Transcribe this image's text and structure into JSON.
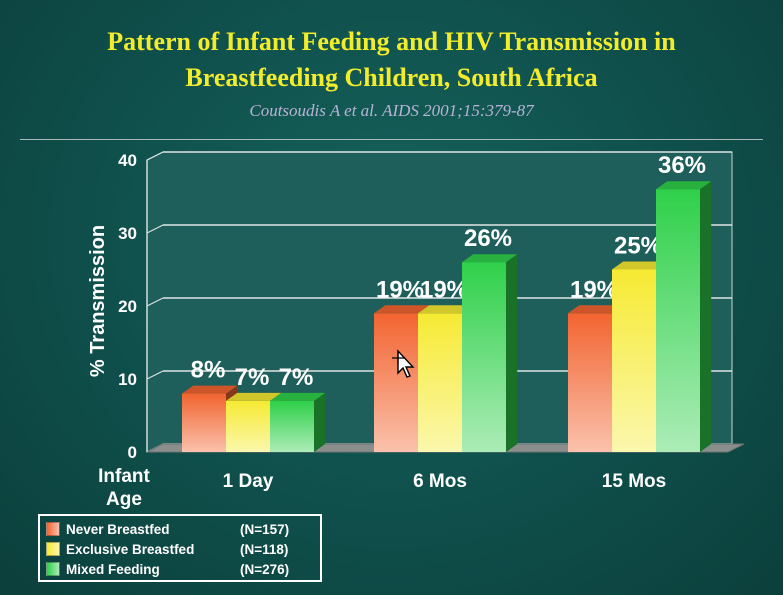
{
  "slide": {
    "title_line1": "Pattern of Infant Feeding and HIV Transmission in",
    "title_line2": "Breastfeeding Children, South Africa",
    "citation": "Coutsoudis A et al.  AIDS 2001;15:379-87"
  },
  "colors": {
    "background": "#0f4f4b",
    "title": "#f2ec2a",
    "citation": "#b9b3d8"
  },
  "chart_data": {
    "type": "bar",
    "title": "",
    "ylabel": "% Transmission",
    "xlabel": "Infant Age",
    "ylim": [
      0,
      40
    ],
    "yticks": [
      0,
      10,
      20,
      30,
      40
    ],
    "grid": true,
    "legend_position": "bottom-left",
    "categories": [
      "1 Day",
      "6 Mos",
      "15 Mos"
    ],
    "series": [
      {
        "name": "Never Breastfed",
        "n": "(N=157)",
        "values": [
          8,
          19,
          19
        ],
        "labels": [
          "8%",
          "19%",
          "19%"
        ],
        "color": "#f26430"
      },
      {
        "name": "Exclusive Breastfed",
        "n": "(N=118)",
        "values": [
          7,
          19,
          25
        ],
        "labels": [
          "7%",
          "19%",
          "25%"
        ],
        "color": "#f6ea33"
      },
      {
        "name": "Mixed Feeding",
        "n": "(N=276)",
        "values": [
          7,
          26,
          36
        ],
        "labels": [
          "7%",
          "26%",
          "36%"
        ],
        "color": "#2fd04a"
      }
    ]
  }
}
